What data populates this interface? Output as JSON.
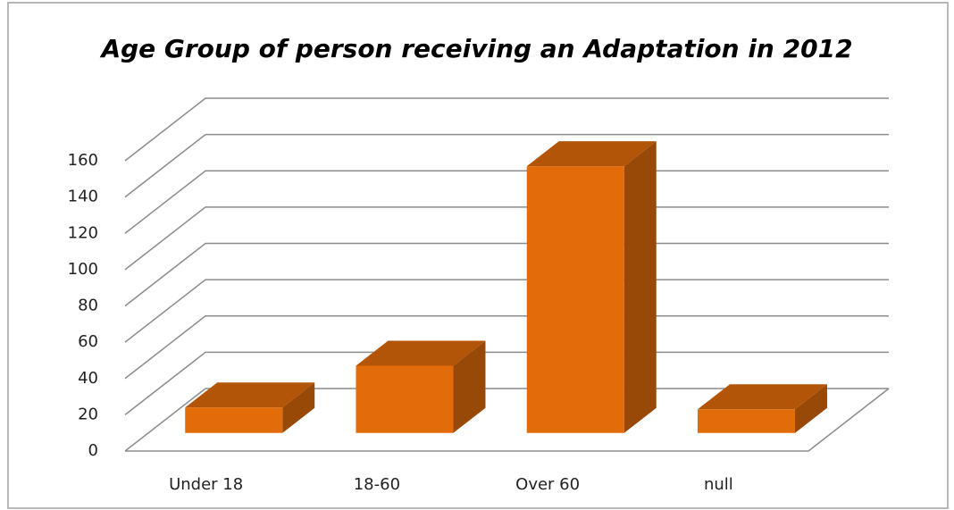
{
  "chart_data": {
    "type": "bar3d",
    "title": "Age Group of person receiving an Adaptation in 2012",
    "categories": [
      "Under 18",
      "18-60",
      "Over 60",
      "null"
    ],
    "values": [
      14,
      37,
      147,
      13
    ],
    "color": "#e36c0a",
    "ylim": [
      0,
      160
    ],
    "yticks": [
      0,
      20,
      40,
      60,
      80,
      100,
      120,
      140,
      160
    ],
    "grid": true
  }
}
